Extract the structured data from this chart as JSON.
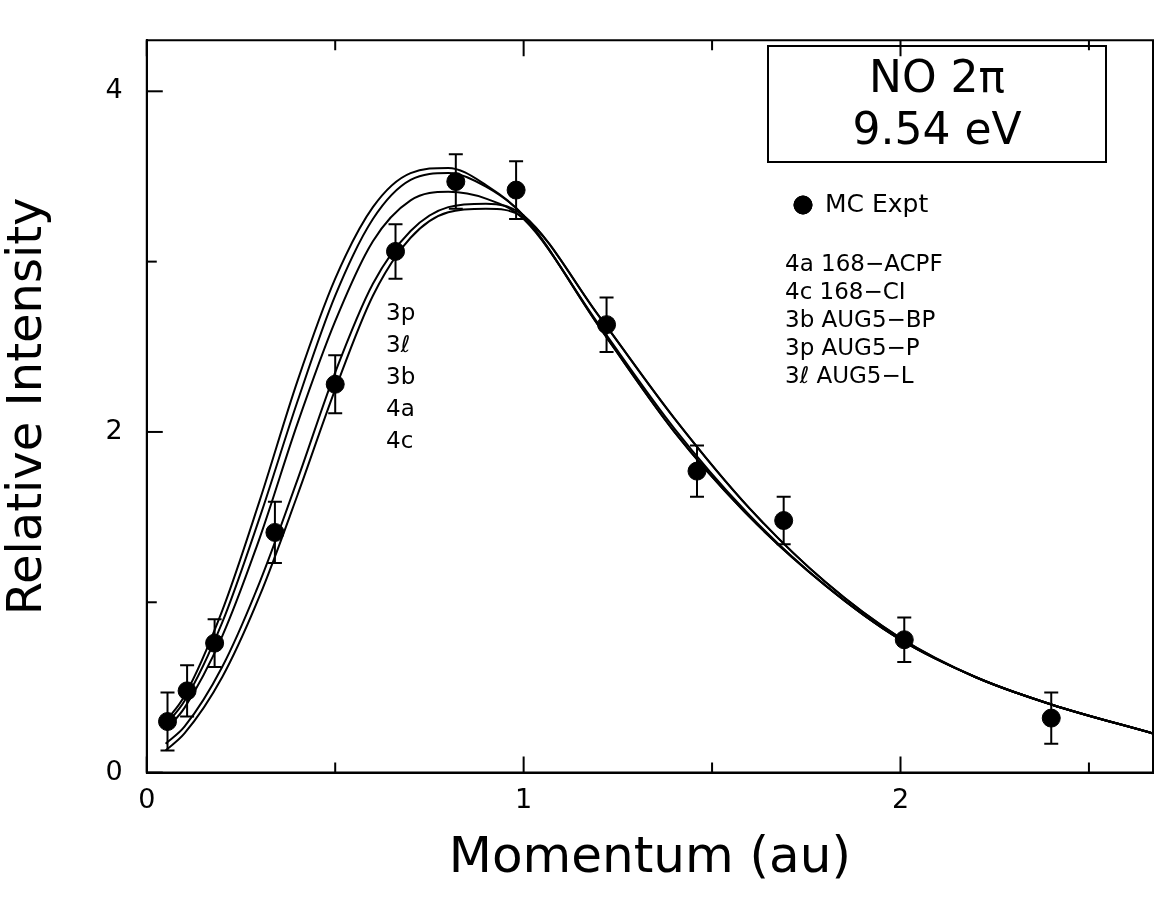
{
  "chart_data": {
    "type": "scatter",
    "xlabel": "Momentum (au)",
    "ylabel": "Relative Intensity",
    "xlim": [
      0,
      2.67
    ],
    "ylim": [
      0,
      4.3
    ],
    "xticks": [
      0,
      {
        "value": 0.5,
        "label": null
      },
      1,
      {
        "value": 1.5,
        "label": null
      },
      2,
      {
        "value": 2.5,
        "label": null
      }
    ],
    "yticks": [
      0,
      {
        "value": 1,
        "label": null
      },
      2,
      {
        "value": 3,
        "label": null
      },
      4
    ],
    "grid": false,
    "legend": "top right",
    "marker": "circle",
    "annotations": [
      "NO 2π",
      "9.54 eV",
      "4a 168−ACPF",
      "4c 168−CI",
      "3b AUG5−BP",
      "3p AUG5−P",
      "3ℓ AUG5−L",
      "3p",
      "3ℓ",
      "3b",
      "4a",
      "4c"
    ],
    "series": [
      {
        "name": "MC Expt",
        "color": "#000000",
        "x": [
          0.055,
          0.107,
          0.18,
          0.34,
          0.5,
          0.66,
          0.82,
          0.98,
          1.22,
          1.46,
          1.69,
          2.01,
          2.4
        ],
        "values": [
          0.3,
          0.48,
          0.76,
          1.41,
          2.28,
          3.06,
          3.47,
          3.42,
          2.63,
          1.77,
          1.48,
          0.78,
          0.32
        ],
        "errors": [
          0.17,
          0.15,
          0.14,
          0.18,
          0.17,
          0.16,
          0.16,
          0.17,
          0.16,
          0.15,
          0.14,
          0.13,
          0.15
        ]
      },
      {
        "type": "line",
        "color": "#000000",
        "marker": "none",
        "x": [
          0.05,
          0.1,
          0.2,
          0.3,
          0.4,
          0.5,
          0.6,
          0.7,
          0.8,
          0.9,
          1.0,
          1.2,
          1.4,
          1.6,
          1.8,
          2.0,
          2.2,
          2.4,
          2.67
        ],
        "values": [
          0.3,
          0.45,
          0.95,
          1.6,
          2.3,
          2.9,
          3.32,
          3.52,
          3.55,
          3.45,
          3.27,
          2.62,
          2.0,
          1.5,
          1.1,
          0.78,
          0.56,
          0.4,
          0.23
        ]
      },
      {
        "type": "line",
        "color": "#000000",
        "marker": "none",
        "x": [
          0.05,
          0.1,
          0.2,
          0.3,
          0.4,
          0.5,
          0.6,
          0.7,
          0.8,
          0.9,
          1.0,
          1.2,
          1.4,
          1.6,
          1.8,
          2.0,
          2.2,
          2.4,
          2.67
        ],
        "values": [
          0.28,
          0.42,
          0.88,
          1.5,
          2.18,
          2.8,
          3.25,
          3.48,
          3.52,
          3.44,
          3.27,
          2.62,
          2.0,
          1.5,
          1.1,
          0.78,
          0.56,
          0.4,
          0.23
        ]
      },
      {
        "type": "line",
        "color": "#000000",
        "marker": "none",
        "x": [
          0.05,
          0.1,
          0.2,
          0.3,
          0.4,
          0.5,
          0.6,
          0.7,
          0.8,
          0.9,
          1.0,
          1.2,
          1.4,
          1.6,
          1.8,
          2.0,
          2.2,
          2.4,
          2.67
        ],
        "values": [
          0.25,
          0.38,
          0.8,
          1.38,
          2.05,
          2.65,
          3.12,
          3.36,
          3.41,
          3.37,
          3.25,
          2.63,
          2.02,
          1.51,
          1.1,
          0.78,
          0.56,
          0.4,
          0.23
        ]
      },
      {
        "type": "line",
        "color": "#000000",
        "marker": "none",
        "x": [
          0.05,
          0.1,
          0.2,
          0.3,
          0.4,
          0.5,
          0.6,
          0.7,
          0.8,
          0.9,
          1.0,
          1.2,
          1.4,
          1.6,
          1.8,
          2.0,
          2.2,
          2.4,
          2.67
        ],
        "values": [
          0.17,
          0.27,
          0.62,
          1.12,
          1.72,
          2.35,
          2.87,
          3.18,
          3.32,
          3.34,
          3.27,
          2.68,
          2.08,
          1.55,
          1.12,
          0.79,
          0.56,
          0.4,
          0.23
        ]
      },
      {
        "type": "line",
        "color": "#000000",
        "marker": "none",
        "x": [
          0.05,
          0.1,
          0.2,
          0.3,
          0.4,
          0.5,
          0.6,
          0.7,
          0.8,
          0.9,
          1.0,
          1.2,
          1.4,
          1.6,
          1.8,
          2.0,
          2.2,
          2.4,
          2.67
        ],
        "values": [
          0.13,
          0.23,
          0.56,
          1.04,
          1.63,
          2.25,
          2.8,
          3.14,
          3.29,
          3.31,
          3.26,
          2.68,
          2.08,
          1.55,
          1.12,
          0.79,
          0.56,
          0.4,
          0.23
        ]
      }
    ]
  }
}
